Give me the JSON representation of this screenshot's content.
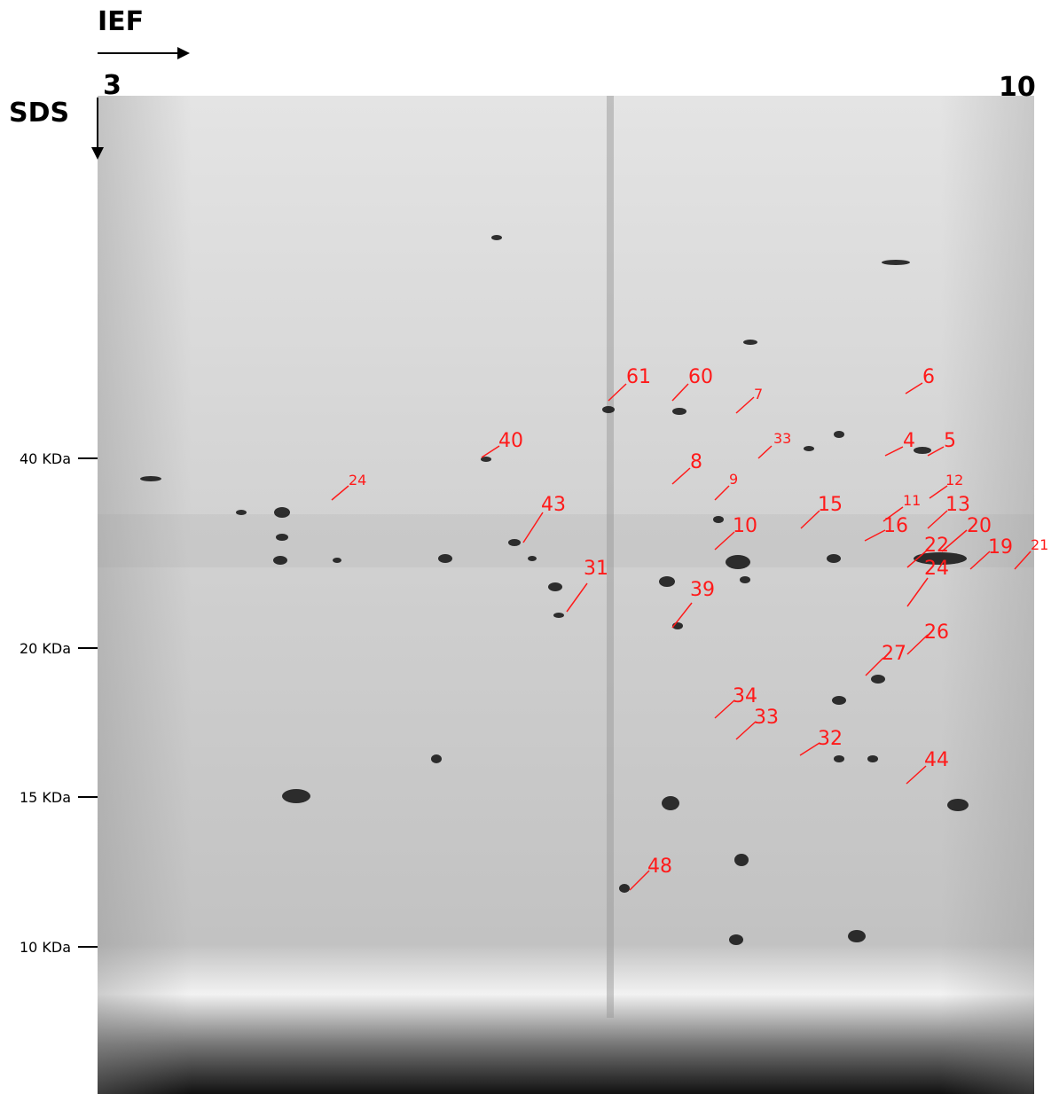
{
  "header": {
    "x_axis": "IEF",
    "y_axis": "SDS",
    "ph_start": "3",
    "ph_end": "10"
  },
  "markers": [
    "40 KDa",
    "20 KDa",
    "15 KDa",
    "10 KDa"
  ],
  "spot_labels": [
    "61",
    "60",
    "7",
    "33",
    "6",
    "4",
    "5",
    "40",
    "8",
    "24",
    "9",
    "12",
    "11",
    "13",
    "43",
    "15",
    "16",
    "20",
    "10",
    "22",
    "19",
    "21",
    "24",
    "31",
    "39",
    "26",
    "27",
    "34",
    "33",
    "32",
    "44",
    "48"
  ]
}
